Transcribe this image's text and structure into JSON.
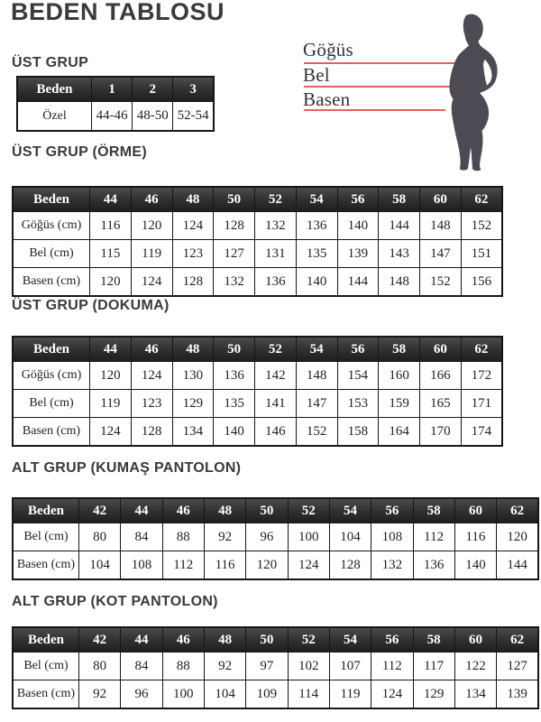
{
  "title": "BEDEN TABLOSU",
  "figure": {
    "labels": {
      "chest": "Göğüs",
      "waist": "Bel",
      "hip": "Basen"
    },
    "line_color": "#e2635c",
    "silhouette_color": "#4e4a54"
  },
  "colors": {
    "heading_text": "#3a3a3a",
    "table_header_bg": "#2f2f2f",
    "table_border": "#161616"
  },
  "tables": [
    {
      "heading": "ÜST GRUP",
      "header": [
        "Beden",
        "1",
        "2",
        "3"
      ],
      "rows": [
        [
          "Özel",
          "44-46",
          "48-50",
          "52-54"
        ]
      ]
    },
    {
      "heading": "ÜST GRUP (ÖRME)",
      "header": [
        "Beden",
        "44",
        "46",
        "48",
        "50",
        "52",
        "54",
        "56",
        "58",
        "60",
        "62"
      ],
      "rows": [
        [
          "Göğüs (cm)",
          "116",
          "120",
          "124",
          "128",
          "132",
          "136",
          "140",
          "144",
          "148",
          "152"
        ],
        [
          "Bel (cm)",
          "115",
          "119",
          "123",
          "127",
          "131",
          "135",
          "139",
          "143",
          "147",
          "151"
        ],
        [
          "Basen (cm)",
          "120",
          "124",
          "128",
          "132",
          "136",
          "140",
          "144",
          "148",
          "152",
          "156"
        ]
      ]
    },
    {
      "heading": "ÜST GRUP (DOKUMA)",
      "header": [
        "Beden",
        "44",
        "46",
        "48",
        "50",
        "52",
        "54",
        "56",
        "58",
        "60",
        "62"
      ],
      "rows": [
        [
          "Göğüs (cm)",
          "120",
          "124",
          "130",
          "136",
          "142",
          "148",
          "154",
          "160",
          "166",
          "172"
        ],
        [
          "Bel (cm)",
          "119",
          "123",
          "129",
          "135",
          "141",
          "147",
          "153",
          "159",
          "165",
          "171"
        ],
        [
          "Basen (cm)",
          "124",
          "128",
          "134",
          "140",
          "146",
          "152",
          "158",
          "164",
          "170",
          "174"
        ]
      ]
    },
    {
      "heading": "ALT GRUP (KUMAŞ PANTOLON)",
      "header": [
        "Beden",
        "42",
        "44",
        "46",
        "48",
        "50",
        "52",
        "54",
        "56",
        "58",
        "60",
        "62"
      ],
      "rows": [
        [
          "Bel (cm)",
          "80",
          "84",
          "88",
          "92",
          "96",
          "100",
          "104",
          "108",
          "112",
          "116",
          "120"
        ],
        [
          "Basen (cm)",
          "104",
          "108",
          "112",
          "116",
          "120",
          "124",
          "128",
          "132",
          "136",
          "140",
          "144"
        ]
      ]
    },
    {
      "heading": "ALT GRUP (KOT PANTOLON)",
      "header": [
        "Beden",
        "42",
        "44",
        "46",
        "48",
        "50",
        "52",
        "54",
        "56",
        "58",
        "60",
        "62"
      ],
      "rows": [
        [
          "Bel (cm)",
          "80",
          "84",
          "88",
          "92",
          "97",
          "102",
          "107",
          "112",
          "117",
          "122",
          "127"
        ],
        [
          "Basen (cm)",
          "92",
          "96",
          "100",
          "104",
          "109",
          "114",
          "119",
          "124",
          "129",
          "134",
          "139"
        ]
      ]
    }
  ]
}
